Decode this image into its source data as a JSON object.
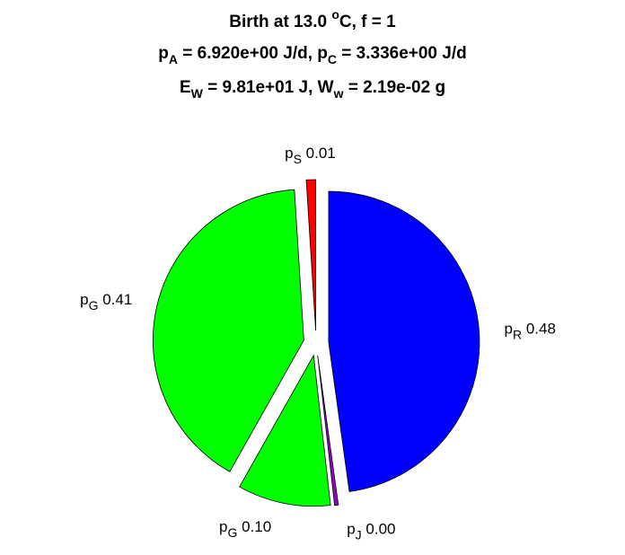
{
  "chart_data": {
    "type": "pie",
    "title_lines": [
      [
        {
          "text": "Birth at 13.0 "
        },
        {
          "sup": "o"
        },
        {
          "text": "C, f = 1"
        }
      ],
      [
        {
          "text": "p"
        },
        {
          "sub": "A"
        },
        {
          "text": " = 6.920e+00 J/d, p"
        },
        {
          "sub": "C"
        },
        {
          "text": " = 3.336e+00 J/d"
        }
      ],
      [
        {
          "text": "E"
        },
        {
          "sub": "W"
        },
        {
          "text": " = 9.81e+01 J, W"
        },
        {
          "sub": "w"
        },
        {
          "text": " = 2.19e-02 g"
        }
      ]
    ],
    "categories": [
      {
        "text": "p",
        "sub": "R"
      },
      {
        "text": "p",
        "sub": "J"
      },
      {
        "text": "p",
        "sub": "G"
      },
      {
        "text": "p",
        "sub": "G"
      },
      {
        "text": "p",
        "sub": "S"
      }
    ],
    "values": [
      0.48,
      0.004,
      0.1,
      0.41,
      0.01
    ],
    "value_labels": [
      "0.48",
      "0.00",
      "0.10",
      "0.41",
      "0.01"
    ],
    "colors": [
      "#0000ff",
      "#9900cc",
      "#00ff00",
      "#00ff00",
      "#ff0000"
    ]
  }
}
